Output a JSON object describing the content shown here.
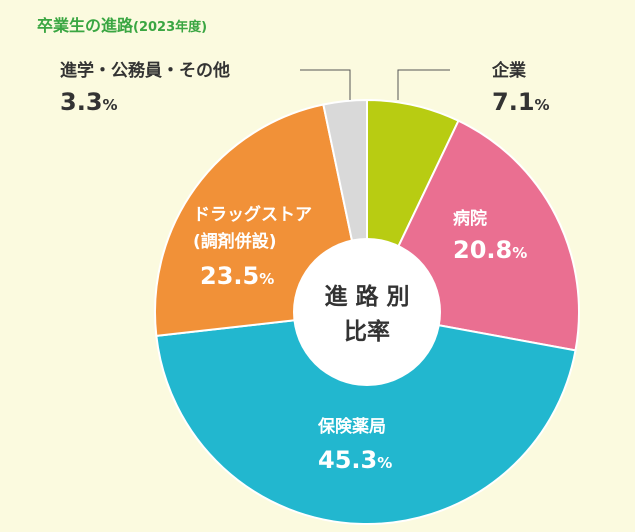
{
  "title": "卒業生の進路",
  "title_year": "(2023年度)",
  "center_label": [
    "進 路 別",
    "比率"
  ],
  "chart_data": {
    "type": "pie",
    "title": "卒業生の進路(2023年度)",
    "unit": "%",
    "slices": [
      {
        "name": "企業",
        "value": 7.1,
        "value_text": "7.1",
        "color": "#b8cc12"
      },
      {
        "name": "病院",
        "value": 20.8,
        "value_text": "20.8",
        "color": "#ea6f91"
      },
      {
        "name": "保険薬局",
        "value": 45.3,
        "value_text": "45.3",
        "color": "#22b7cf"
      },
      {
        "name": "ドラッグストア",
        "name2": "(調剤併設)",
        "value": 23.5,
        "value_text": "23.5",
        "color": "#f19138"
      },
      {
        "name": "進学・公務員・その他",
        "value": 3.3,
        "value_text": "3.3",
        "color": "#d9d9d9"
      }
    ]
  }
}
